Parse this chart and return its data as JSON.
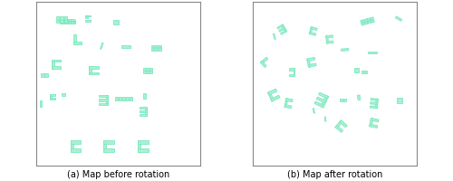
{
  "label_left": "(a) Map before rotation",
  "label_right": "(b) Map after rotation",
  "bg_color": "#ffffff",
  "panel_bg": "#ffffff",
  "shape_color": "#aaf0d1",
  "shape_edge_color": "#7de8c0",
  "shape_linewidth": 0.6,
  "figsize": [
    5.0,
    2.01
  ],
  "dpi": 100,
  "label_fontsize": 7.0
}
